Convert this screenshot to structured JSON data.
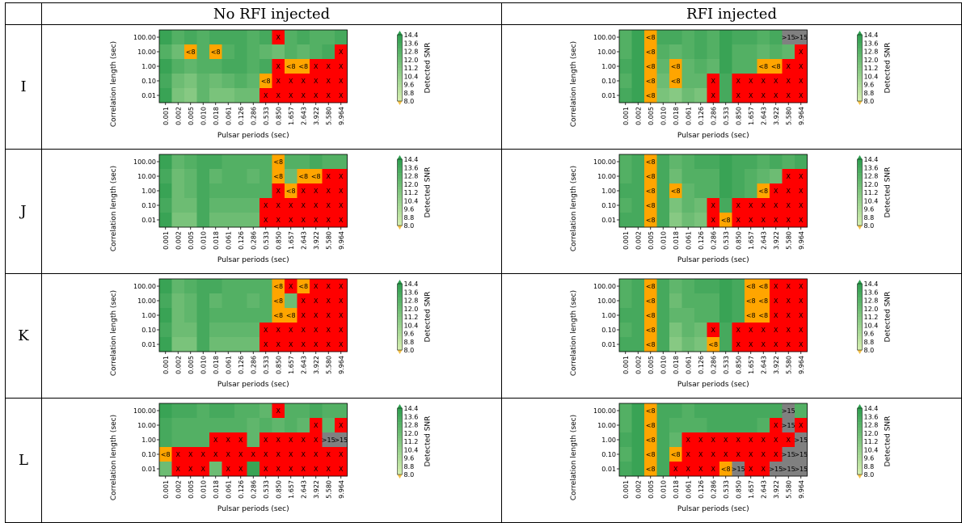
{
  "headers": {
    "corner": "",
    "col1": "No RFI injected",
    "col2": "RFI injected"
  },
  "rows": [
    "I",
    "J",
    "K",
    "L"
  ],
  "colors": {
    "x": "#ff0000",
    "lt8": "#ffa500",
    "gt15": "#808080",
    "colorbar_low": "#d6efb0",
    "colorbar_high": "#2e9e4f"
  },
  "chart_data": [
    {
      "panel": "I-no-rfi",
      "grid": [
        [
          "14.0",
          "13.0",
          "13.5",
          "13.0",
          "13.5",
          "13.5",
          "13.5",
          "13.0",
          "13.5",
          "X",
          "13.0",
          "13.5",
          "13.0",
          "13.0",
          "13.5"
        ],
        [
          "13.0",
          "12.0",
          "<8",
          "13.0",
          "<8",
          "13.0",
          "13.5",
          "13.0",
          "12.5",
          "12.0",
          "13.0",
          "12.5",
          "13.0",
          "13.5",
          "X"
        ],
        [
          "14.0",
          "13.0",
          "12.5",
          "13.0",
          "13.0",
          "13.5",
          "13.5",
          "13.0",
          "13.5",
          "X",
          "<8",
          "<8",
          "X",
          "X",
          "X"
        ],
        [
          "13.5",
          "12.0",
          "11.5",
          "12.5",
          "12.0",
          "12.5",
          "13.0",
          "12.5",
          "<8",
          "X",
          "X",
          "X",
          "X",
          "X",
          "X"
        ],
        [
          "14.0",
          "11.5",
          "11.0",
          "12.5",
          "11.5",
          "11.5",
          "12.0",
          "12.0",
          "X",
          "X",
          "X",
          "X",
          "X",
          "X",
          "X"
        ]
      ]
    },
    {
      "panel": "I-rfi",
      "grid": [
        [
          "13.0",
          "14.0",
          "<8",
          "13.5",
          "13.5",
          "13.0",
          "13.5",
          "13.0",
          "14.0",
          "13.5",
          "13.5",
          "13.0",
          "13.5",
          ">15",
          ">15"
        ],
        [
          "13.0",
          "14.0",
          "<8",
          "13.0",
          "12.5",
          "13.0",
          "13.5",
          "13.0",
          "14.0",
          "13.0",
          "13.0",
          "12.5",
          "13.0",
          "12.5",
          "X"
        ],
        [
          "13.5",
          "14.0",
          "<8",
          "12.5",
          "<8",
          "12.5",
          "13.0",
          "12.5",
          "14.0",
          "13.0",
          "13.0",
          "<8",
          "<8",
          "X",
          "X"
        ],
        [
          "13.0",
          "14.0",
          "<8",
          "12.0",
          "<8",
          "12.5",
          "12.5",
          "X",
          "13.5",
          "X",
          "X",
          "X",
          "X",
          "X",
          "X"
        ],
        [
          "13.5",
          "14.0",
          "<8",
          "11.5",
          "11.0",
          "12.0",
          "11.5",
          "X",
          "13.5",
          "X",
          "X",
          "X",
          "X",
          "X",
          "X"
        ]
      ]
    },
    {
      "panel": "J-no-rfi",
      "grid": [
        [
          "14.0",
          "12.5",
          "13.0",
          "13.5",
          "13.5",
          "13.0",
          "13.0",
          "13.0",
          "13.0",
          "<8",
          "13.0",
          "13.0",
          "13.5",
          "13.0",
          "13.0"
        ],
        [
          "13.5",
          "12.0",
          "12.5",
          "13.5",
          "12.5",
          "13.0",
          "13.0",
          "12.5",
          "13.0",
          "<8",
          "12.0",
          "<8",
          "<8",
          "X",
          "X"
        ],
        [
          "14.0",
          "12.0",
          "12.5",
          "13.5",
          "13.0",
          "13.0",
          "13.0",
          "13.0",
          "13.0",
          "X",
          "<8",
          "X",
          "X",
          "X",
          "X"
        ],
        [
          "13.5",
          "12.0",
          "12.0",
          "13.5",
          "12.5",
          "12.5",
          "12.5",
          "12.5",
          "X",
          "X",
          "X",
          "X",
          "X",
          "X",
          "X"
        ],
        [
          "14.0",
          "11.5",
          "11.5",
          "13.5",
          "12.0",
          "12.0",
          "12.0",
          "12.0",
          "X",
          "X",
          "X",
          "X",
          "X",
          "X",
          "X"
        ]
      ]
    },
    {
      "panel": "J-rfi",
      "grid": [
        [
          "13.0",
          "13.5",
          "<8",
          "13.5",
          "12.5",
          "13.0",
          "13.5",
          "13.5",
          "14.0",
          "13.5",
          "13.5",
          "13.0",
          "13.5",
          "13.0",
          "13.5"
        ],
        [
          "13.0",
          "13.5",
          "<8",
          "13.5",
          "12.0",
          "13.0",
          "13.0",
          "13.0",
          "14.0",
          "13.5",
          "13.0",
          "12.5",
          "12.0",
          "X",
          "X"
        ],
        [
          "13.5",
          "13.5",
          "<8",
          "13.5",
          "<8",
          "12.5",
          "13.0",
          "13.0",
          "14.0",
          "13.5",
          "13.0",
          "<8",
          "X",
          "X",
          "X"
        ],
        [
          "13.0",
          "13.5",
          "<8",
          "13.5",
          "11.5",
          "12.5",
          "12.0",
          "X",
          "13.5",
          "X",
          "X",
          "X",
          "X",
          "X",
          "X"
        ],
        [
          "13.5",
          "13.5",
          "<8",
          "13.5",
          "11.0",
          "12.0",
          "11.5",
          "X",
          "<8",
          "X",
          "X",
          "X",
          "X",
          "X",
          "X"
        ]
      ]
    },
    {
      "panel": "K-no-rfi",
      "grid": [
        [
          "14.0",
          "12.5",
          "13.0",
          "13.5",
          "13.5",
          "13.0",
          "13.0",
          "13.0",
          "13.0",
          "<8",
          "X",
          "<8",
          "X",
          "X",
          "X"
        ],
        [
          "13.5",
          "12.0",
          "12.5",
          "13.5",
          "12.5",
          "13.0",
          "13.0",
          "12.5",
          "13.0",
          "<8",
          "12.0",
          "X",
          "X",
          "X",
          "X"
        ],
        [
          "14.0",
          "12.0",
          "12.5",
          "13.5",
          "13.0",
          "13.0",
          "13.0",
          "13.0",
          "13.0",
          "<8",
          "<8",
          "X",
          "X",
          "X",
          "X"
        ],
        [
          "13.5",
          "12.0",
          "12.0",
          "13.5",
          "12.5",
          "12.5",
          "12.5",
          "12.5",
          "X",
          "X",
          "X",
          "X",
          "X",
          "X",
          "X"
        ],
        [
          "14.0",
          "11.5",
          "11.5",
          "13.5",
          "12.0",
          "12.0",
          "12.0",
          "12.0",
          "X",
          "X",
          "X",
          "X",
          "X",
          "X",
          "X"
        ]
      ]
    },
    {
      "panel": "K-rfi",
      "grid": [
        [
          "13.0",
          "13.5",
          "<8",
          "13.5",
          "12.5",
          "13.0",
          "13.5",
          "13.5",
          "14.0",
          "13.5",
          "<8",
          "<8",
          "X",
          "X",
          "X"
        ],
        [
          "13.0",
          "13.5",
          "<8",
          "13.5",
          "12.0",
          "13.0",
          "13.0",
          "13.0",
          "14.0",
          "13.5",
          "<8",
          "<8",
          "X",
          "X",
          "X"
        ],
        [
          "13.5",
          "13.5",
          "<8",
          "13.5",
          "12.5",
          "12.5",
          "13.0",
          "13.0",
          "14.0",
          "13.5",
          "<8",
          "<8",
          "X",
          "X",
          "X"
        ],
        [
          "13.0",
          "13.5",
          "<8",
          "13.5",
          "11.5",
          "12.5",
          "12.0",
          "X",
          "13.5",
          "X",
          "X",
          "X",
          "X",
          "X",
          "X"
        ],
        [
          "13.5",
          "13.5",
          "<8",
          "13.5",
          "11.0",
          "12.0",
          "11.5",
          "<8",
          "13.5",
          "X",
          "X",
          "X",
          "X",
          "X",
          "X"
        ]
      ]
    },
    {
      "panel": "L-no-rfi",
      "grid": [
        [
          "14.0",
          "13.5",
          "13.5",
          "13.0",
          "13.5",
          "13.5",
          "13.0",
          "13.0",
          "12.5",
          "X",
          "13.0",
          "13.0",
          "13.5",
          "13.0",
          "13.0"
        ],
        [
          "13.5",
          "13.0",
          "13.0",
          "13.0",
          "13.0",
          "13.0",
          "13.0",
          "12.5",
          "13.0",
          "12.5",
          "13.0",
          "12.5",
          "X",
          "12.5",
          "X"
        ],
        [
          "13.5",
          "13.0",
          "13.0",
          "13.0",
          "X",
          "X",
          "X",
          "12.5",
          "X",
          "X",
          "X",
          "X",
          "X",
          ">15",
          ">15"
        ],
        [
          "<8",
          "X",
          "X",
          "X",
          "X",
          "X",
          "X",
          "X",
          "X",
          "X",
          "X",
          "X",
          "X",
          "X",
          "X"
        ],
        [
          "12.0",
          "X",
          "X",
          "X",
          "12.0",
          "X",
          "X",
          "14.0",
          "X",
          "X",
          "X",
          "X",
          "X",
          "X",
          "X"
        ]
      ]
    },
    {
      "panel": "L-rfi",
      "grid": [
        [
          "13.0",
          "14.0",
          "<8",
          "13.5",
          "13.5",
          "13.0",
          "13.5",
          "13.5",
          "13.5",
          "13.5",
          "13.5",
          "13.5",
          "13.5",
          ">15",
          "13.0"
        ],
        [
          "13.0",
          "14.0",
          "<8",
          "13.5",
          "13.0",
          "13.0",
          "13.0",
          "13.5",
          "13.5",
          "13.5",
          "13.5",
          "13.0",
          "X",
          ">15",
          "X"
        ],
        [
          "13.5",
          "14.0",
          "<8",
          "13.5",
          "12.5",
          "X",
          "X",
          "X",
          "X",
          "X",
          "X",
          "X",
          "X",
          "X",
          ">15"
        ],
        [
          "13.0",
          "14.0",
          "<8",
          "13.5",
          "<8",
          "X",
          "X",
          "X",
          "X",
          "X",
          "X",
          "X",
          "X",
          ">15",
          ">15"
        ],
        [
          "13.5",
          "14.0",
          "<8",
          "13.5",
          "X",
          "X",
          "X",
          "X",
          "<8",
          ">15",
          "X",
          "X",
          ">15",
          ">15",
          ">15"
        ]
      ]
    }
  ],
  "axis": {
    "type": "heatmap",
    "xlabel": "Pulsar periods (sec)",
    "ylabel": "Correlation length (sec)",
    "x_ticks": [
      "0.001",
      "0.002",
      "0.005",
      "0.010",
      "0.018",
      "0.061",
      "0.126",
      "0.286",
      "0.533",
      "0.850",
      "1.657",
      "2.643",
      "3.922",
      "5.580",
      "9.964"
    ],
    "y_ticks": [
      "100.00",
      "10.00",
      "1.00",
      "0.10",
      "0.01"
    ],
    "colorbar_label": "Detected SNR",
    "colorbar_ticks": [
      "14.4",
      "13.6",
      "12.8",
      "12.0",
      "11.2",
      "10.4",
      "9.6",
      "8.8",
      "8.0"
    ],
    "colorbar_range": [
      8.0,
      14.4
    ]
  }
}
